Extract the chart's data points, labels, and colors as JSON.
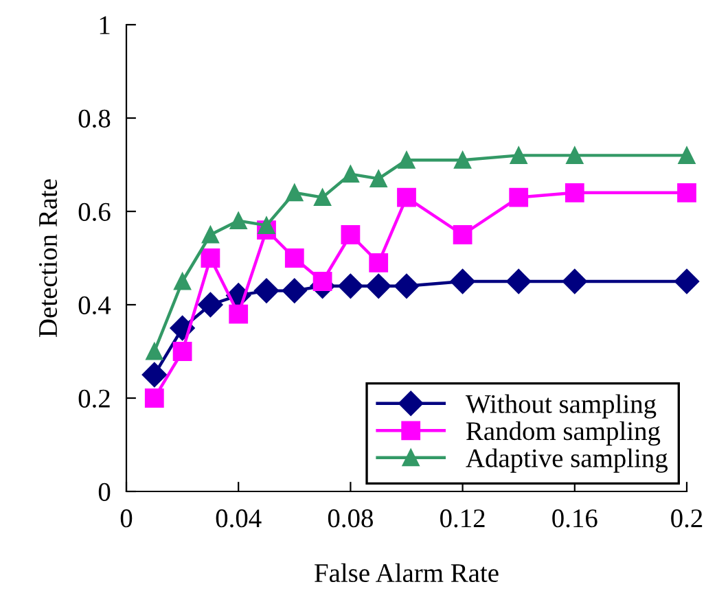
{
  "chart_data": {
    "type": "line",
    "xlabel": "False Alarm Rate",
    "ylabel": "Detection Rate",
    "x": [
      0.01,
      0.02,
      0.03,
      0.04,
      0.05,
      0.06,
      0.07,
      0.08,
      0.09,
      0.1,
      0.12,
      0.14,
      0.16,
      0.2
    ],
    "series": [
      {
        "name": "Without sampling",
        "color": "#000080",
        "marker": "diamond",
        "values": [
          0.25,
          0.35,
          0.4,
          0.42,
          0.43,
          0.43,
          0.44,
          0.44,
          0.44,
          0.44,
          0.45,
          0.45,
          0.45,
          0.45
        ]
      },
      {
        "name": "Random sampling",
        "color": "#ff00ff",
        "marker": "square",
        "values": [
          0.2,
          0.3,
          0.5,
          0.38,
          0.56,
          0.5,
          0.45,
          0.55,
          0.49,
          0.63,
          0.55,
          0.63,
          0.64,
          0.64
        ]
      },
      {
        "name": "Adaptive sampling",
        "color": "#339966",
        "marker": "triangle",
        "values": [
          0.3,
          0.45,
          0.55,
          0.58,
          0.57,
          0.64,
          0.63,
          0.68,
          0.67,
          0.71,
          0.71,
          0.72,
          0.72,
          0.72
        ]
      }
    ],
    "xlim": [
      0,
      0.2
    ],
    "xticks": [
      {
        "value": 0,
        "label": "0"
      },
      0.04,
      0.08,
      0.12,
      0.16,
      0.2
    ],
    "ylim": [
      0,
      1
    ],
    "yticks": [
      {
        "value": 0,
        "label": "0"
      },
      0.2,
      0.4,
      0.6,
      0.8,
      {
        "value": 1,
        "label": "1"
      }
    ],
    "grid": false,
    "legend": "bottom right",
    "line_style": "solid"
  }
}
